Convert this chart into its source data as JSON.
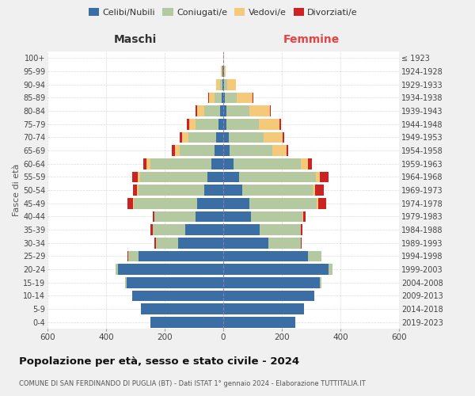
{
  "age_groups": [
    "0-4",
    "5-9",
    "10-14",
    "15-19",
    "20-24",
    "25-29",
    "30-34",
    "35-39",
    "40-44",
    "45-49",
    "50-54",
    "55-59",
    "60-64",
    "65-69",
    "70-74",
    "75-79",
    "80-84",
    "85-89",
    "90-94",
    "95-99",
    "100+"
  ],
  "birth_years": [
    "2019-2023",
    "2014-2018",
    "2009-2013",
    "2004-2008",
    "1999-2003",
    "1994-1998",
    "1989-1993",
    "1984-1988",
    "1979-1983",
    "1974-1978",
    "1969-1973",
    "1964-1968",
    "1959-1963",
    "1954-1958",
    "1949-1953",
    "1944-1948",
    "1939-1943",
    "1934-1938",
    "1929-1933",
    "1924-1928",
    "≤ 1923"
  ],
  "colors": {
    "celibi": "#3a6ea5",
    "coniugati": "#b5c9a0",
    "vedovi": "#f5c97a",
    "divorziati": "#cc2222"
  },
  "maschi": {
    "celibi": [
      250,
      280,
      310,
      330,
      360,
      290,
      155,
      130,
      95,
      90,
      65,
      55,
      40,
      30,
      25,
      15,
      10,
      5,
      2,
      2,
      1
    ],
    "coniugati": [
      0,
      0,
      2,
      5,
      8,
      35,
      75,
      110,
      140,
      215,
      225,
      230,
      210,
      120,
      95,
      80,
      55,
      25,
      8,
      2,
      0
    ],
    "vedovi": [
      0,
      0,
      0,
      0,
      0,
      0,
      0,
      1,
      1,
      3,
      5,
      8,
      12,
      15,
      20,
      20,
      25,
      18,
      15,
      3,
      0
    ],
    "divorziati": [
      0,
      0,
      0,
      0,
      0,
      2,
      5,
      8,
      5,
      18,
      12,
      18,
      12,
      10,
      8,
      10,
      5,
      4,
      0,
      0,
      0
    ]
  },
  "femmine": {
    "celibi": [
      245,
      275,
      310,
      330,
      360,
      290,
      155,
      125,
      95,
      90,
      65,
      55,
      35,
      22,
      18,
      12,
      10,
      5,
      3,
      2,
      1
    ],
    "coniugati": [
      0,
      0,
      2,
      5,
      12,
      45,
      110,
      140,
      175,
      230,
      240,
      260,
      230,
      145,
      120,
      110,
      80,
      40,
      10,
      2,
      0
    ],
    "vedovi": [
      0,
      0,
      0,
      0,
      0,
      0,
      0,
      1,
      2,
      5,
      8,
      15,
      25,
      50,
      65,
      70,
      70,
      55,
      30,
      5,
      2
    ],
    "divorziati": [
      0,
      0,
      0,
      0,
      0,
      1,
      2,
      5,
      8,
      25,
      30,
      30,
      12,
      5,
      5,
      4,
      2,
      2,
      0,
      0,
      0
    ]
  },
  "xlim": 600,
  "title": "Popolazione per età, sesso e stato civile - 2024",
  "subtitle": "COMUNE DI SAN FERDINANDO DI PUGLIA (BT) - Dati ISTAT 1° gennaio 2024 - Elaborazione TUTTITALIA.IT",
  "ylabel_left": "Fasce di età",
  "legend_labels": [
    "Celibi/Nubili",
    "Coniugati/e",
    "Vedovi/e",
    "Divorziati/e"
  ],
  "maschi_label": "Maschi",
  "femmine_label": "Femmine",
  "bg_color": "#f0f0f0",
  "plot_bg": "#ffffff",
  "grid_color": "#cccccc"
}
